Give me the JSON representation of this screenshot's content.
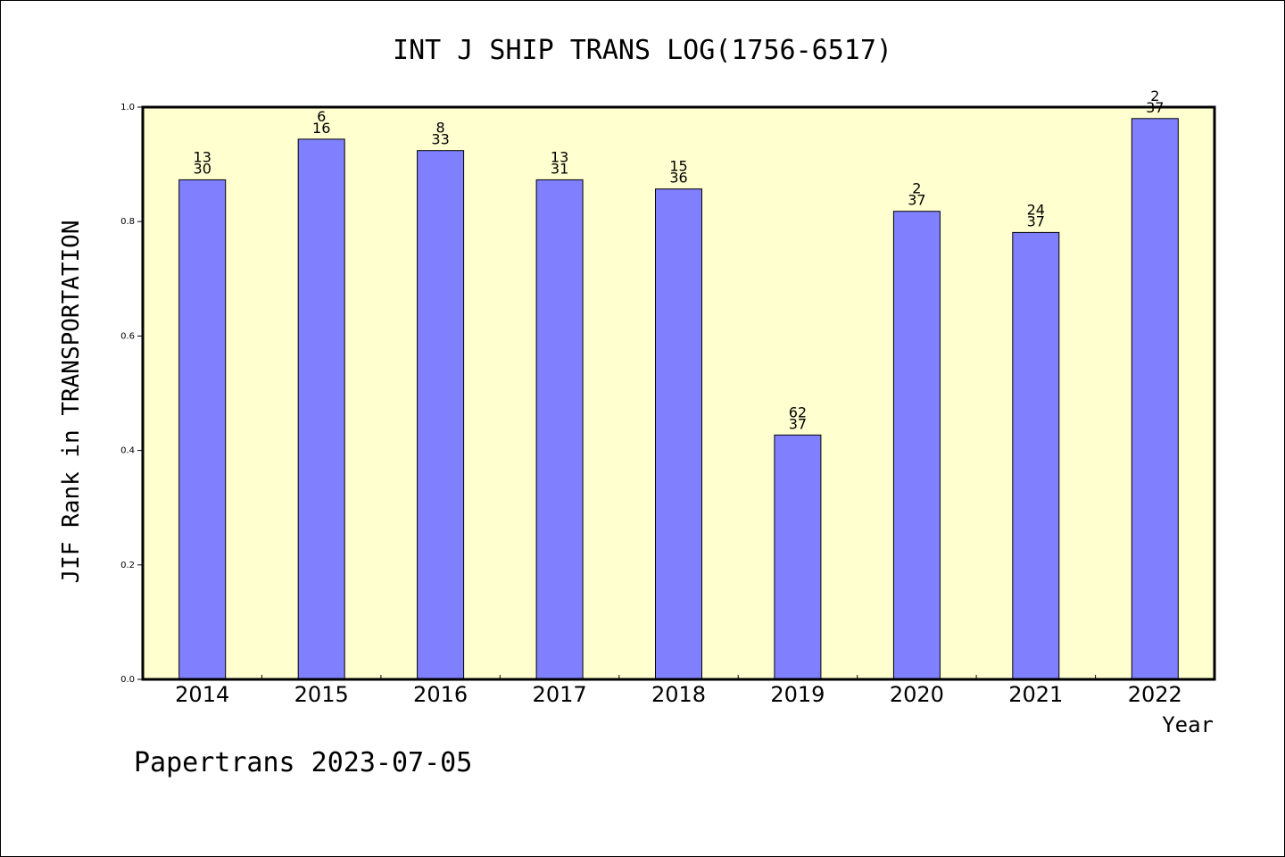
{
  "chart_data": {
    "type": "bar",
    "title": "INT J SHIP TRANS LOG(1756-6517)",
    "xlabel": "Year",
    "ylabel": "JIF Rank in TRANSPORTATION",
    "footer": "Papertrans 2023-07-05",
    "ylim": [
      0,
      1.0
    ],
    "yticks": [
      "0.0",
      "0.2",
      "0.4",
      "0.6",
      "0.8",
      "1.0"
    ],
    "categories": [
      "2014",
      "2015",
      "2016",
      "2017",
      "2018",
      "2019",
      "2020",
      "2021",
      "2022"
    ],
    "values": [
      0.873,
      0.944,
      0.924,
      0.873,
      0.857,
      0.427,
      0.818,
      0.781,
      0.98
    ],
    "labels": [
      {
        "top": "13",
        "bottom": "30"
      },
      {
        "top": "6",
        "bottom": "16"
      },
      {
        "top": "8",
        "bottom": "33"
      },
      {
        "top": "13",
        "bottom": "31"
      },
      {
        "top": "15",
        "bottom": "36"
      },
      {
        "top": "62",
        "bottom": "37"
      },
      {
        "top": "2",
        "bottom": "37"
      },
      {
        "top": "24",
        "bottom": "37"
      },
      {
        "top": "2",
        "bottom": "37"
      }
    ],
    "grid": false,
    "colors": {
      "plot_background": "#ffffd0",
      "bar_fill": "#8080ff",
      "bar_stroke": "#000000"
    }
  }
}
